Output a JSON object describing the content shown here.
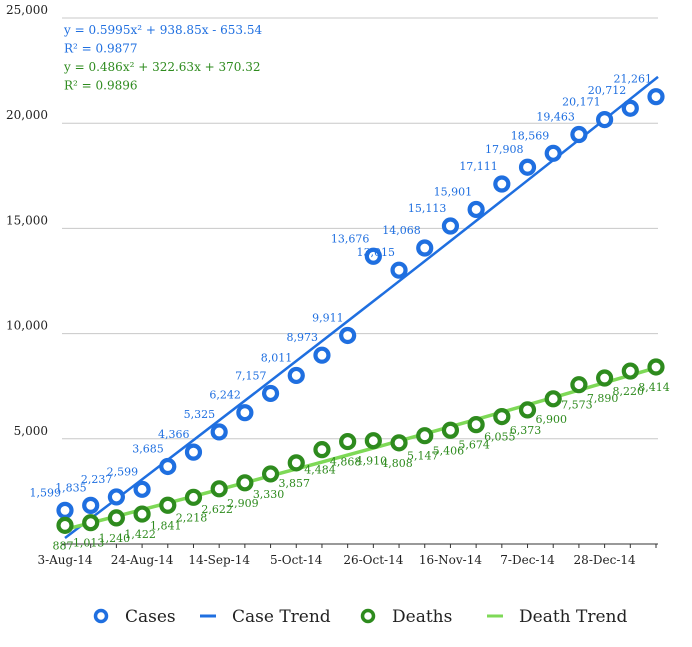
{
  "chart_data": {
    "type": "scatter",
    "title": "",
    "xlabel": "",
    "ylabel": "",
    "ylim": [
      0,
      25000
    ],
    "y_ticks": [
      "5,000",
      "10,000",
      "15,000",
      "20,000",
      "25,000"
    ],
    "x_tick_labels": [
      "3-Aug-14",
      "24-Aug-14",
      "14-Sep-14",
      "5-Oct-14",
      "26-Oct-14",
      "16-Nov-14",
      "7-Dec-14",
      "28-Dec-14"
    ],
    "grid": true,
    "legend_position": "bottom",
    "x": [
      "3-Aug-14",
      "10-Aug-14",
      "17-Aug-14",
      "24-Aug-14",
      "31-Aug-14",
      "7-Sep-14",
      "14-Sep-14",
      "21-Sep-14",
      "28-Sep-14",
      "5-Oct-14",
      "12-Oct-14",
      "19-Oct-14",
      "26-Oct-14",
      "2-Nov-14",
      "9-Nov-14",
      "16-Nov-14",
      "23-Nov-14",
      "30-Nov-14",
      "7-Dec-14",
      "14-Dec-14",
      "21-Dec-14",
      "28-Dec-14",
      "4-Jan-15",
      "11-Jan-15"
    ],
    "series": [
      {
        "name": "Cases",
        "color": "#1f6fe0",
        "values": [
          1599,
          1835,
          2237,
          2599,
          3685,
          4366,
          5325,
          6242,
          7157,
          8011,
          8973,
          9911,
          13676,
          13015,
          14068,
          15113,
          15901,
          17111,
          17908,
          18569,
          19463,
          20171,
          20712,
          21261
        ],
        "labels": [
          "1,599",
          "1,835",
          "2,237",
          "2,599",
          "3,685",
          "4,366",
          "5,325",
          "6,242",
          "7,157",
          "8,011",
          "8,973",
          "9,911",
          "13,676",
          "13,015",
          "14,068",
          "15,113",
          "15,901",
          "17,111",
          "17,908",
          "18,569",
          "19,463",
          "20,171",
          "20,712",
          "21,261"
        ]
      },
      {
        "name": "Deaths",
        "color": "#2e8b1e",
        "values": [
          887,
          1013,
          1240,
          1422,
          1841,
          2218,
          2622,
          2909,
          3330,
          3857,
          4484,
          4868,
          4910,
          4808,
          5147,
          5406,
          5674,
          6055,
          6373,
          6900,
          7573,
          7890,
          8220,
          8414
        ],
        "labels": [
          "887",
          "1,013",
          "1,240",
          "1,422",
          "1,841",
          "2,218",
          "2,622",
          "2,909",
          "3,330",
          "3,857",
          "4,484",
          "4,868",
          "4,910",
          "4,808",
          "5,147",
          "5,406",
          "5,674",
          "6,055",
          "6,373",
          "6,900",
          "7,573",
          "7,890",
          "8,220",
          "8,414"
        ]
      }
    ],
    "trendlines": [
      {
        "name": "Case Trend",
        "color": "#1f6fe0",
        "fit": "polynomial-2",
        "x_from": "3-Aug-14",
        "x_to": "11-Jan-15",
        "y_from": 285,
        "y_to": 22200
      },
      {
        "name": "Death Trend",
        "color": "#7ed957",
        "fit": "polynomial-2",
        "x_from": "3-Aug-14",
        "x_to": "11-Jan-15",
        "y_from": 693,
        "y_to": 8406
      }
    ],
    "annotations": [
      {
        "text": "y = 0.5995x² + 938.85x - 653.54",
        "color": "#1f6fe0"
      },
      {
        "text": "R² = 0.9877",
        "color": "#1f6fe0"
      },
      {
        "text": "y = 0.486x² + 322.63x + 370.32",
        "color": "#2e8b1e"
      },
      {
        "text": "R² = 0.9896",
        "color": "#2e8b1e"
      }
    ],
    "legend": [
      {
        "label": "Cases",
        "kind": "marker",
        "color": "#1f6fe0"
      },
      {
        "label": "Case Trend",
        "kind": "line",
        "color": "#1f6fe0"
      },
      {
        "label": "Deaths",
        "kind": "marker",
        "color": "#2e8b1e"
      },
      {
        "label": "Death Trend",
        "kind": "line",
        "color": "#7ed957"
      }
    ]
  }
}
